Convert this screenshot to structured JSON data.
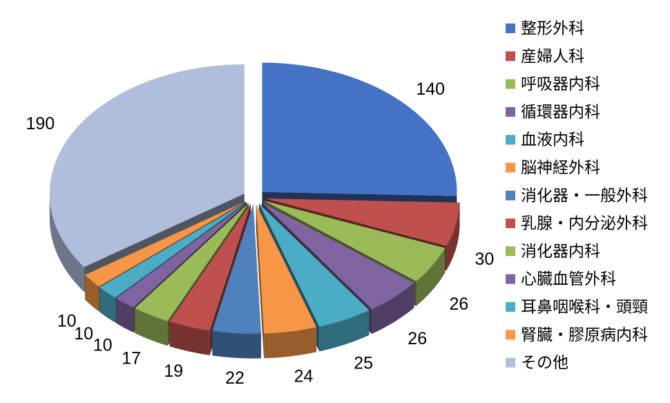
{
  "chart_data": {
    "type": "pie",
    "style": "3d-exploded",
    "title": "",
    "legend_position": "right",
    "categories": [
      "整形外科",
      "産婦人科",
      "呼吸器内科",
      "循環器内科",
      "血液内科",
      "脳神経外科",
      "消化器・一般外科",
      "乳腺・内分泌外科",
      "消化器内科",
      "心臓血管外科",
      "耳鼻咽喉科・頭頸",
      "腎臓・膠原病内科",
      "その他"
    ],
    "values": [
      140,
      30,
      26,
      26,
      25,
      24,
      22,
      19,
      17,
      10,
      10,
      10,
      190
    ],
    "value_labels": [
      "140",
      "30",
      "26",
      "26",
      "25",
      "24",
      "22",
      "19",
      "17",
      "10",
      "10",
      "10",
      "190"
    ],
    "colors": [
      "#4472C4",
      "#C0504D",
      "#9BBB59",
      "#8064A2",
      "#4BACC6",
      "#F79646",
      "#4F81BD",
      "#C0504D",
      "#9BBB59",
      "#8064A2",
      "#4BACC6",
      "#F79646",
      "#B0BEDB"
    ]
  }
}
